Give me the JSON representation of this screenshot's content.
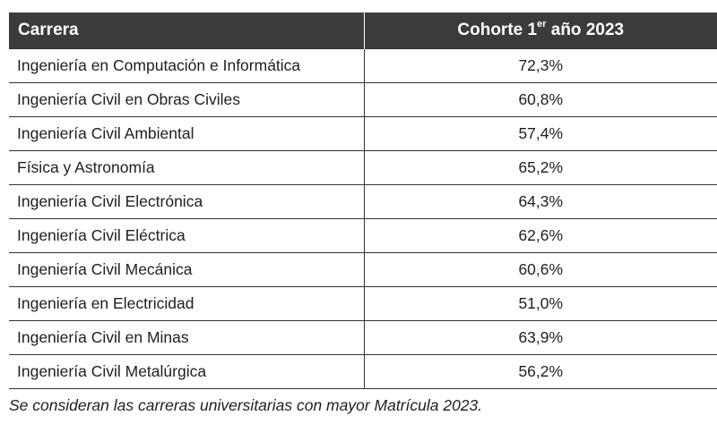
{
  "table": {
    "headers": {
      "career": "Carrera",
      "cohort_prefix": "Cohorte 1",
      "cohort_sup": "er",
      "cohort_suffix": " año 2023"
    },
    "rows": [
      {
        "career": "Ingeniería en Computación e Informática",
        "value": "72,3%"
      },
      {
        "career": "Ingeniería Civil en Obras Civiles",
        "value": "60,8%"
      },
      {
        "career": "Ingeniería Civil Ambiental",
        "value": "57,4%"
      },
      {
        "career": "Física y Astronomía",
        "value": "65,2%"
      },
      {
        "career": "Ingeniería Civil Electrónica",
        "value": "64,3%"
      },
      {
        "career": "Ingeniería Civil Eléctrica",
        "value": "62,6%"
      },
      {
        "career": "Ingeniería Civil Mecánica",
        "value": "60,6%"
      },
      {
        "career": "Ingeniería en Electricidad",
        "value": "51,0%"
      },
      {
        "career": "Ingeniería Civil en Minas",
        "value": "63,9%"
      },
      {
        "career": "Ingeniería Civil Metalúrgica",
        "value": "56,2%"
      }
    ]
  },
  "footnote": "Se consideran las carreras universitarias con mayor Matrícula 2023.",
  "colors": {
    "header_bg": "#3b3b3b",
    "header_text": "#ffffff",
    "border": "#333333"
  }
}
